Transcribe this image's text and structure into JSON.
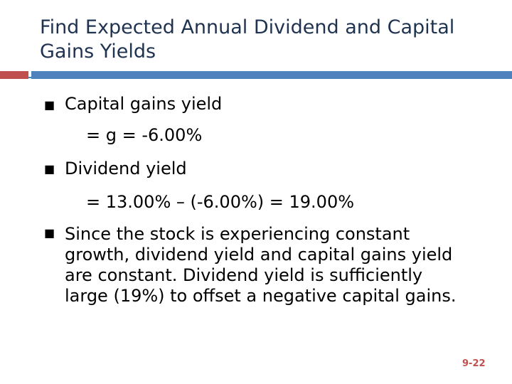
{
  "title": {
    "line1": "Find Expected Annual Dividend and Capital",
    "line2": "Gains Yields"
  },
  "colors": {
    "title": "#1f3350",
    "accent_red": "#c0504d",
    "accent_blue": "#4f81bd"
  },
  "bullet_icon": "square-bullet-icon",
  "bullets": [
    {
      "label": "Capital gains yield",
      "detail": "= g = -6.00%"
    },
    {
      "label": "Dividend yield",
      "detail": "= 13.00% – (-6.00%) = 19.00%"
    }
  ],
  "paragraph": {
    "lines": [
      "Since the stock is experiencing constant",
      "growth, dividend yield and capital gains yield",
      "are constant.  Dividend yield is sufficiently",
      "large (19%) to offset a negative capital gains."
    ]
  },
  "page_number": "9-22"
}
